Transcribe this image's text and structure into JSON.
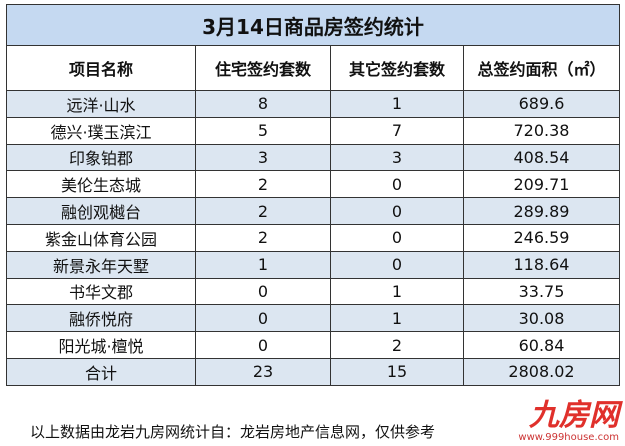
{
  "title": "3月14日商品房签约统计",
  "table": {
    "header": [
      "项目名称",
      "住宅签约套数",
      "其它签约套数",
      "总签约面积（㎡）"
    ],
    "rows": [
      [
        "远洋·山水",
        8,
        1,
        689.6
      ],
      [
        "德兴·璞玉滨江",
        5,
        7,
        720.38
      ],
      [
        "印象铂郡",
        3,
        3,
        408.54
      ],
      [
        "美伦生态城",
        2,
        0,
        209.71
      ],
      [
        "融创观樾台",
        2,
        0,
        289.89
      ],
      [
        "紫金山体育公园",
        2,
        0,
        246.59
      ],
      [
        "新景永年天墅",
        1,
        0,
        118.64
      ],
      [
        "书华文郡",
        0,
        1,
        33.75
      ],
      [
        "融侨悦府",
        0,
        1,
        30.08
      ],
      [
        "阳光城·檀悦",
        0,
        2,
        60.84
      ],
      [
        "合计",
        23,
        15,
        2808.02
      ]
    ]
  },
  "footer": "以上数据由龙岩九房网统计自：龙岩房地产信息网，仅供参考",
  "watermark": {
    "brand": "九房网",
    "url": "www.999house.com"
  }
}
